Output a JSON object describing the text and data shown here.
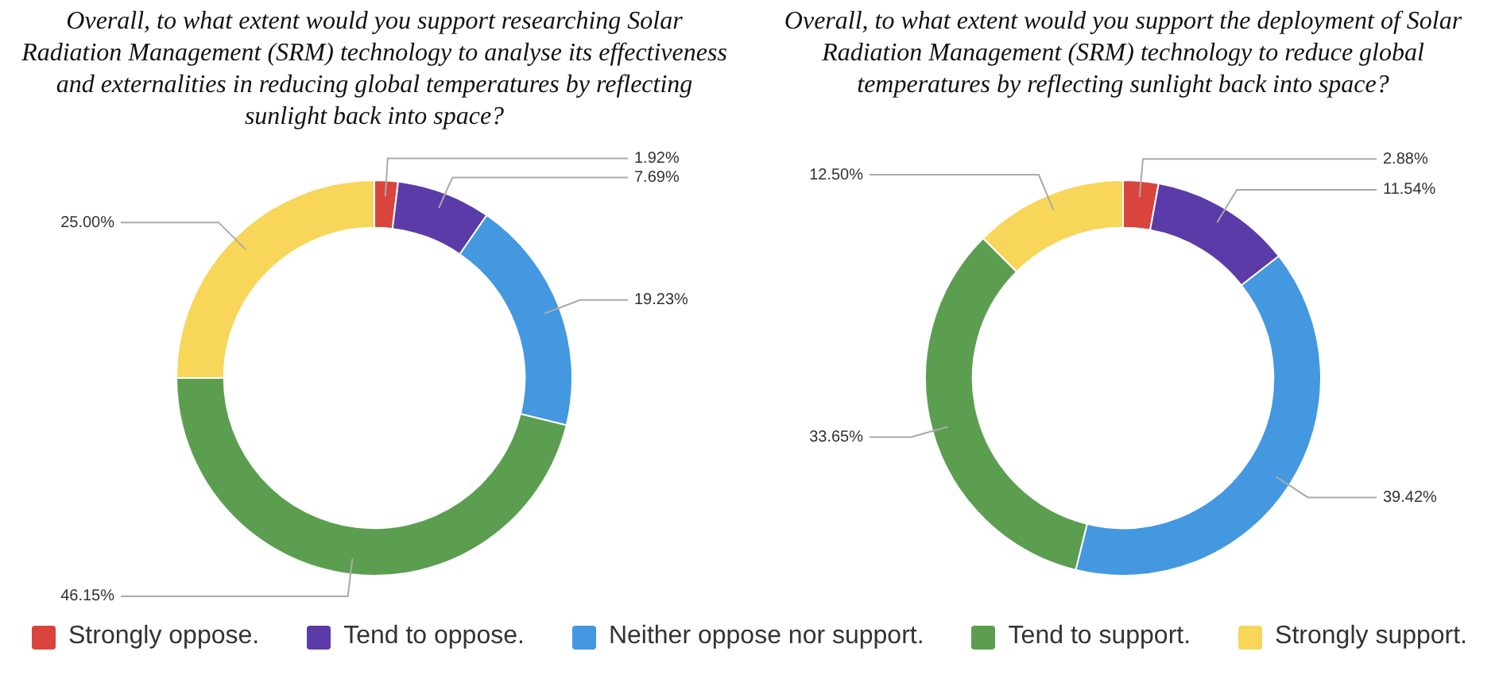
{
  "chart_data": [
    {
      "type": "donut",
      "title": "Overall, to what extent would you support researching Solar Radiation Management (SRM) technology to analyse its effectiveness and externalities in reducing global temperatures by reflecting sunlight back into space?",
      "categories": [
        "Strongly oppose.",
        "Tend to oppose.",
        "Neither oppose nor support.",
        "Tend to support.",
        "Strongly support."
      ],
      "values": [
        1.92,
        7.69,
        19.23,
        46.15,
        25.0
      ],
      "value_labels": [
        "1.92%",
        "7.69%",
        "19.23%",
        "46.15%",
        "25.00%"
      ],
      "colors": [
        "#d9453d",
        "#5b3ba8",
        "#4398e0",
        "#5c9e4f",
        "#f7d65a"
      ],
      "legend": "bottom"
    },
    {
      "type": "donut",
      "title": "Overall, to what extent would you support the deployment of Solar Radiation Management (SRM) technology to reduce global temperatures by reflecting sunlight back into space?",
      "categories": [
        null,
        null,
        null,
        null,
        null
      ],
      "values": [
        2.88,
        11.54,
        39.42,
        33.65,
        12.5
      ],
      "value_labels": [
        "2.88%",
        "11.54%",
        "39.42%",
        "33.65%",
        "12.50%"
      ],
      "colors": [
        "#d9453d",
        "#5b3ba8",
        "#4398e0",
        "#5c9e4f",
        "#f7d65a"
      ]
    }
  ]
}
